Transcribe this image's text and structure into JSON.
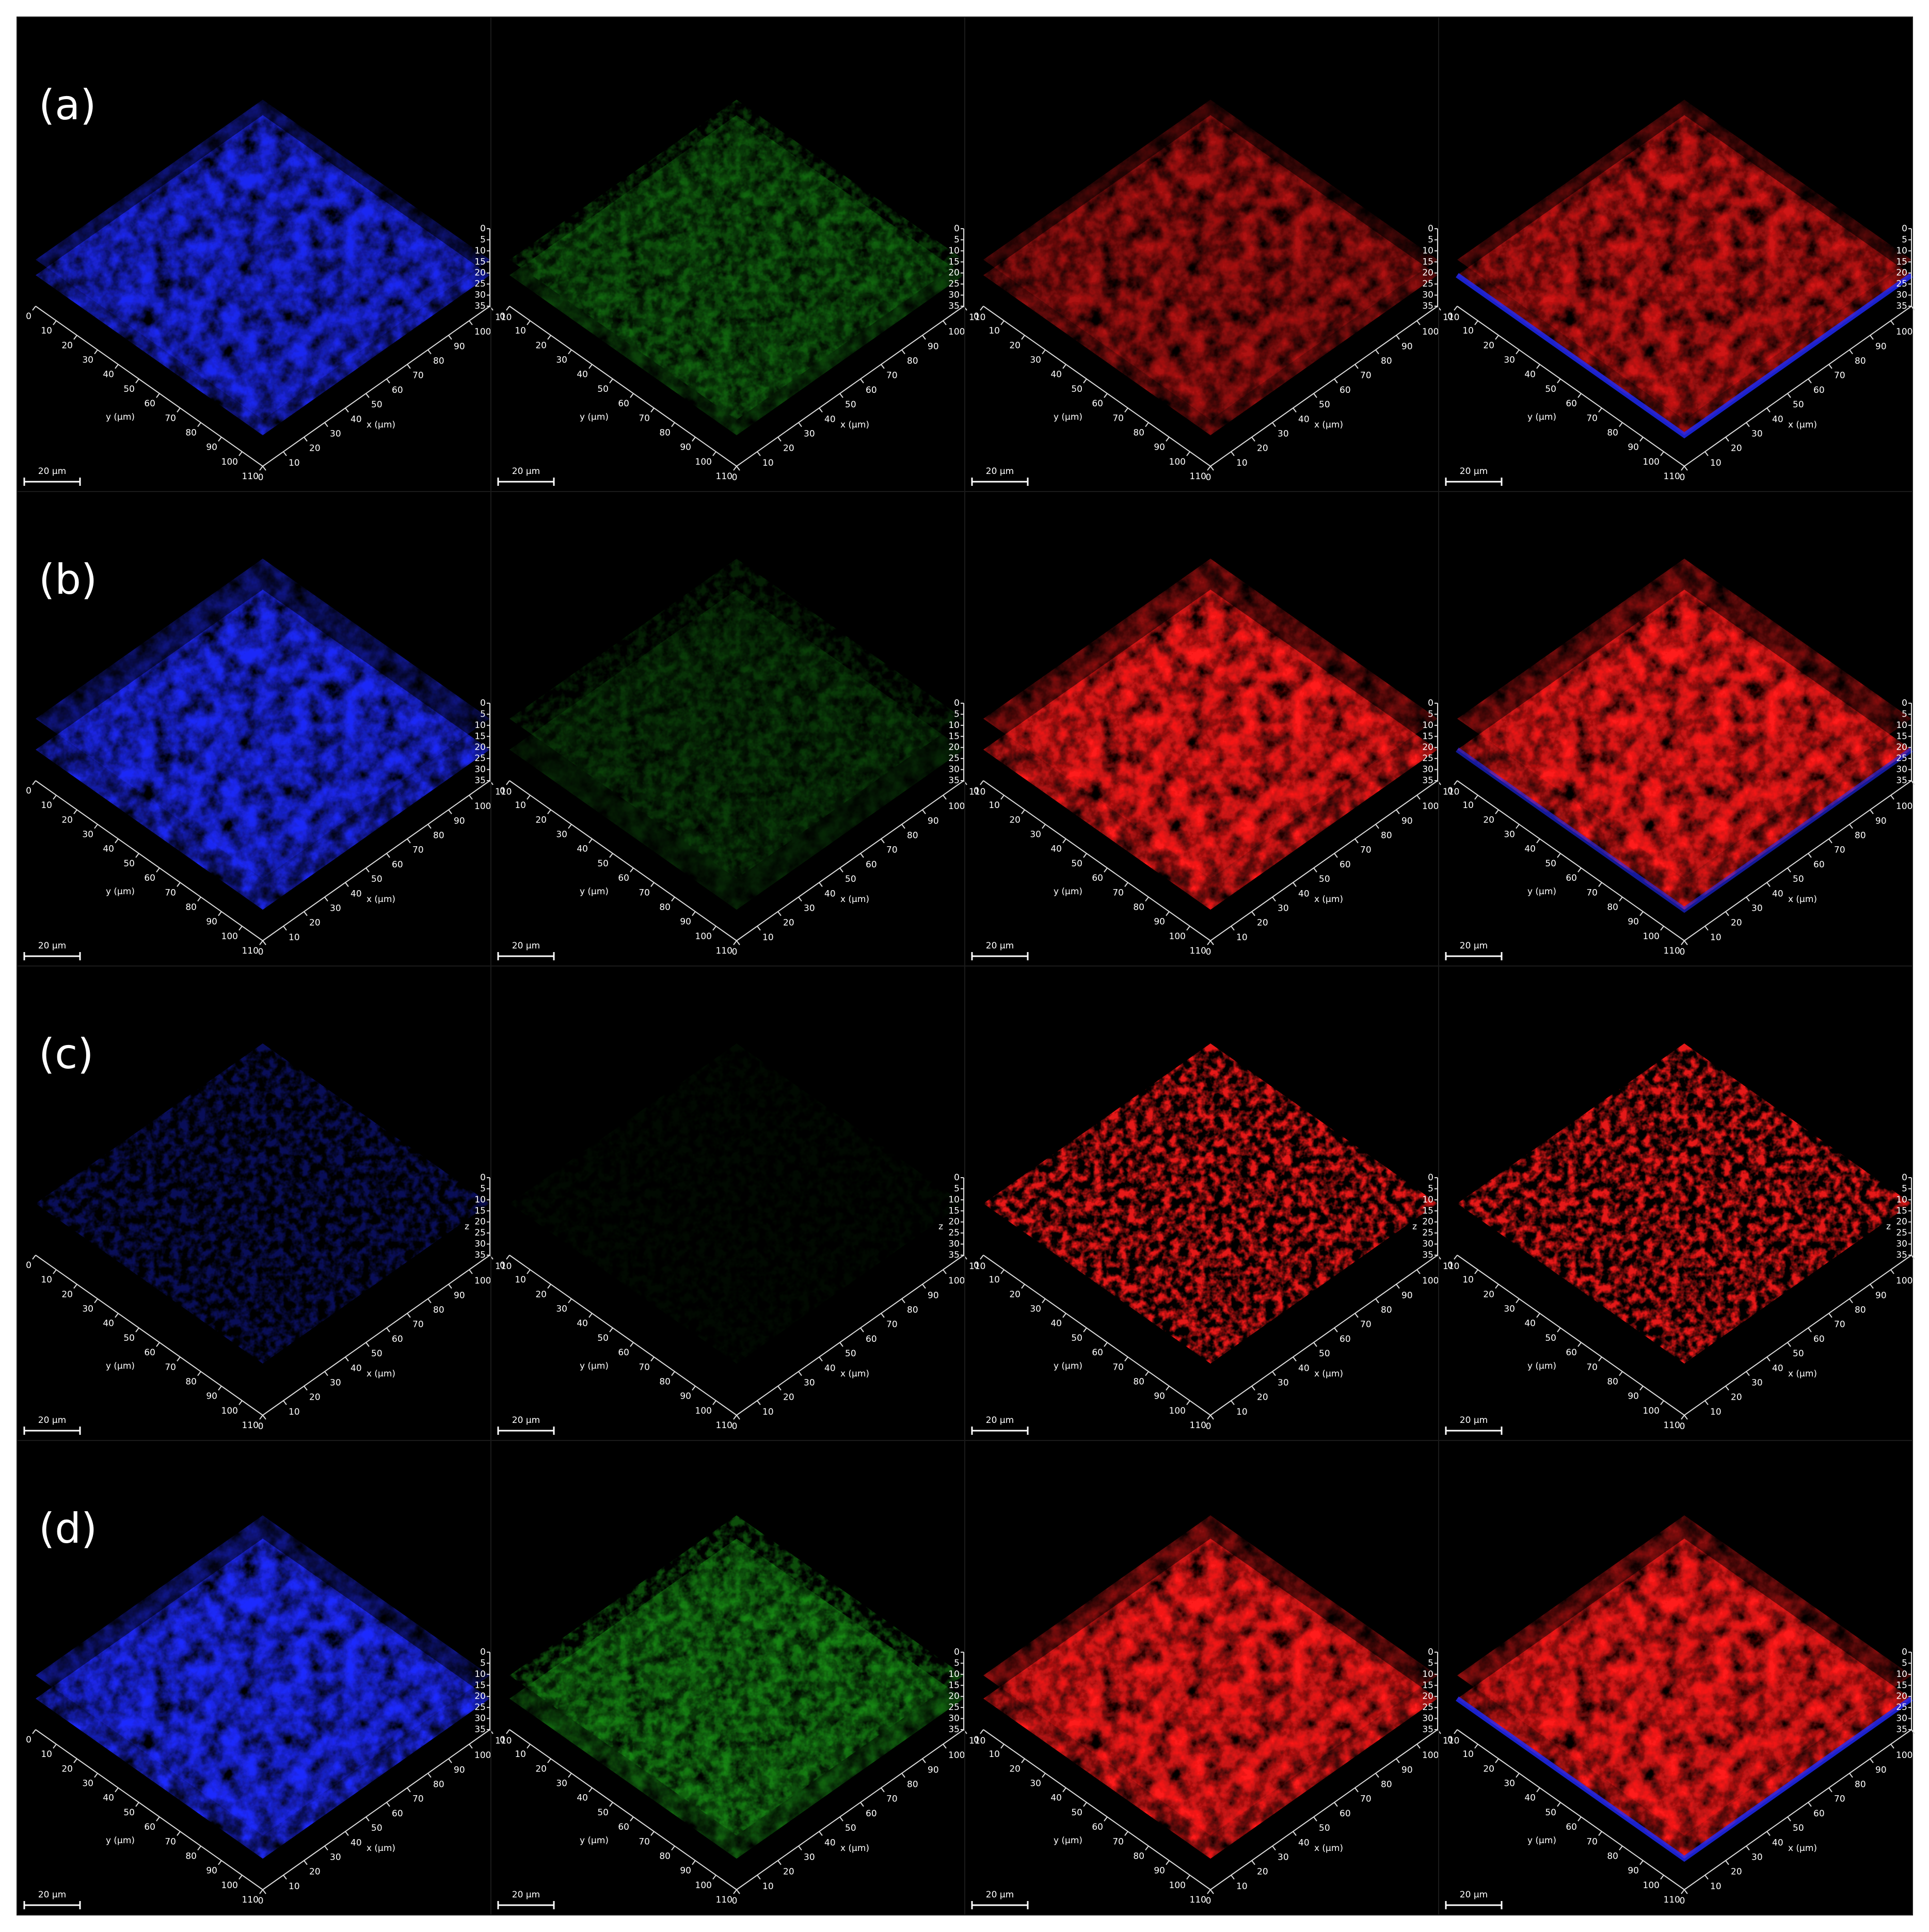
{
  "rows": [
    {
      "label": "(a)"
    },
    {
      "label": "(b)"
    },
    {
      "label": "(c)"
    },
    {
      "label": "(d)"
    }
  ],
  "channels": [
    {
      "color": "#1f2bff"
    },
    {
      "color": "#22c41f"
    },
    {
      "color": "#ff1a1a"
    },
    {
      "color": "#ff1a1a"
    }
  ],
  "scale_bar": "20 µm",
  "axes": {
    "x_label": "x (µm)",
    "y_label": "y (µm)",
    "z_label": "z",
    "xy_ticks": [
      "0",
      "10",
      "20",
      "30",
      "40",
      "50",
      "60",
      "70",
      "80",
      "90",
      "100",
      "110"
    ],
    "z_ticks": [
      "0",
      "5",
      "10",
      "15",
      "20",
      "25",
      "30",
      "35"
    ]
  }
}
